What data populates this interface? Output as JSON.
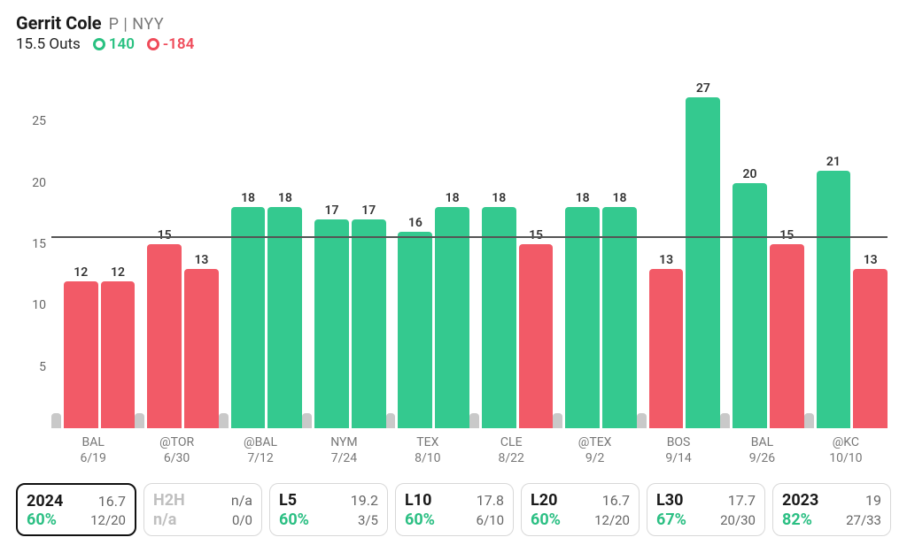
{
  "header": {
    "player_name": "Gerrit Cole",
    "position": "P",
    "sep": "|",
    "team": "NYY",
    "line_value": "15.5",
    "line_stat": "Outs",
    "over": {
      "glyph": "O",
      "value": "140"
    },
    "under": {
      "glyph": "U",
      "value": "-184"
    }
  },
  "colors": {
    "over_bar": "#34c98f",
    "under_bar": "#f25a67",
    "gray_bar": "#c9c9c9",
    "threshold": "#555555",
    "pct_good": "#2bbf83",
    "na_text": "#bfbfbf"
  },
  "chart": {
    "type": "bar",
    "y_max": 30,
    "y_ticks": [
      "5",
      "10",
      "15",
      "20",
      "25"
    ],
    "threshold": 15.5,
    "bar_width_pct": 42,
    "gray_stub_height": 1.2,
    "groups": [
      {
        "opp": "BAL",
        "date": "6/19",
        "bars": [
          {
            "v": 12,
            "c": "under"
          },
          {
            "v": 12,
            "c": "under"
          }
        ]
      },
      {
        "opp": "@TOR",
        "date": "6/30",
        "bars": [
          {
            "v": 15,
            "c": "under"
          },
          {
            "v": 13,
            "c": "under"
          }
        ]
      },
      {
        "opp": "@BAL",
        "date": "7/12",
        "bars": [
          {
            "v": 18,
            "c": "over"
          },
          {
            "v": 18,
            "c": "over"
          }
        ]
      },
      {
        "opp": "NYM",
        "date": "7/24",
        "bars": [
          {
            "v": 17,
            "c": "over"
          },
          {
            "v": 17,
            "c": "over"
          }
        ]
      },
      {
        "opp": "TEX",
        "date": "8/10",
        "bars": [
          {
            "v": 16,
            "c": "over"
          },
          {
            "v": 18,
            "c": "over"
          }
        ]
      },
      {
        "opp": "CLE",
        "date": "8/22",
        "bars": [
          {
            "v": 18,
            "c": "over"
          },
          {
            "v": 15,
            "c": "under"
          }
        ]
      },
      {
        "opp": "@TEX",
        "date": "9/2",
        "bars": [
          {
            "v": 18,
            "c": "over"
          },
          {
            "v": 18,
            "c": "over"
          }
        ]
      },
      {
        "opp": "BOS",
        "date": "9/14",
        "bars": [
          {
            "v": 13,
            "c": "under"
          },
          {
            "v": 27,
            "c": "over"
          }
        ]
      },
      {
        "opp": "BAL",
        "date": "9/26",
        "bars": [
          {
            "v": 20,
            "c": "over"
          },
          {
            "v": 15,
            "c": "under"
          }
        ]
      },
      {
        "opp": "@KC",
        "date": "10/10",
        "bars": [
          {
            "v": 21,
            "c": "over"
          },
          {
            "v": 13,
            "c": "under"
          }
        ]
      }
    ]
  },
  "stats": [
    {
      "label": "2024",
      "avg": "16.7",
      "pct": "60%",
      "pct_color": "good",
      "ratio": "12/20",
      "selected": true
    },
    {
      "label": "H2H",
      "avg": "n/a",
      "pct": "n/a",
      "pct_color": "na",
      "ratio": "0/0",
      "selected": false,
      "na": true
    },
    {
      "label": "L5",
      "avg": "19.2",
      "pct": "60%",
      "pct_color": "good",
      "ratio": "3/5",
      "selected": false
    },
    {
      "label": "L10",
      "avg": "17.8",
      "pct": "60%",
      "pct_color": "good",
      "ratio": "6/10",
      "selected": false
    },
    {
      "label": "L20",
      "avg": "16.7",
      "pct": "60%",
      "pct_color": "good",
      "ratio": "12/20",
      "selected": false
    },
    {
      "label": "L30",
      "avg": "17.7",
      "pct": "67%",
      "pct_color": "good",
      "ratio": "20/30",
      "selected": false
    },
    {
      "label": "2023",
      "avg": "19",
      "pct": "82%",
      "pct_color": "good",
      "ratio": "27/33",
      "selected": false
    }
  ]
}
